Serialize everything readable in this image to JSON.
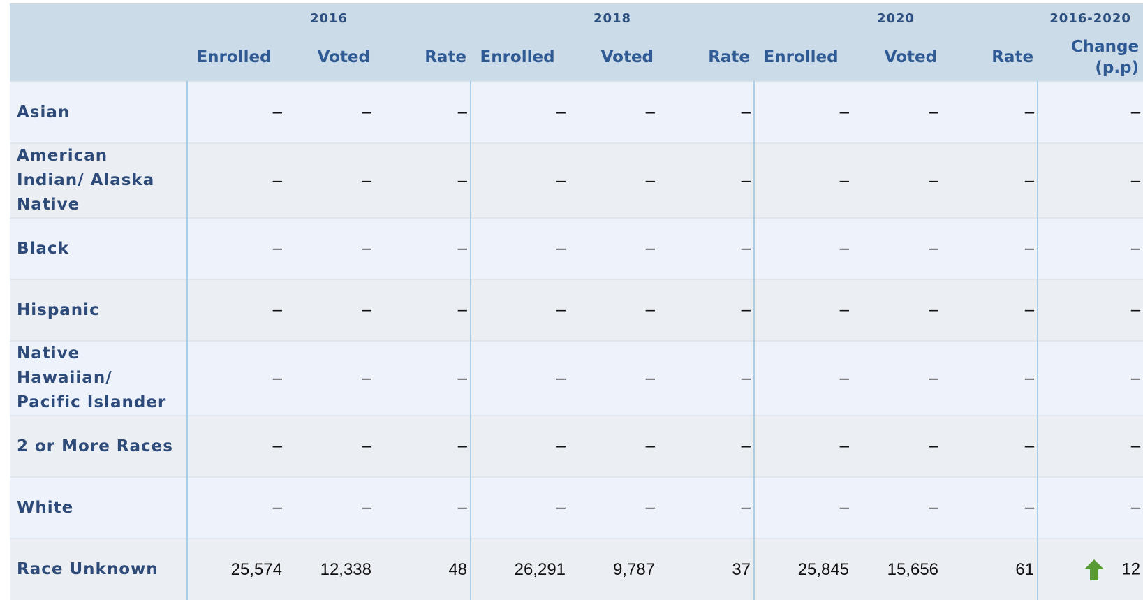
{
  "table": {
    "groups": [
      {
        "title": "2016",
        "columns": [
          "Enrolled",
          "Voted",
          "Rate"
        ]
      },
      {
        "title": "2018",
        "columns": [
          "Enrolled",
          "Voted",
          "Rate"
        ]
      },
      {
        "title": "2020",
        "columns": [
          "Enrolled",
          "Voted",
          "Rate"
        ]
      },
      {
        "title": "2016-2020",
        "columns": [
          "Change (p.p)"
        ]
      }
    ],
    "rows": [
      {
        "label": "Asian",
        "cells": [
          "–",
          "–",
          "–",
          "–",
          "–",
          "–",
          "–",
          "–",
          "–",
          "–"
        ]
      },
      {
        "label": "American Indian/ Alaska Native",
        "cells": [
          "–",
          "–",
          "–",
          "–",
          "–",
          "–",
          "–",
          "–",
          "–",
          "–"
        ]
      },
      {
        "label": "Black",
        "cells": [
          "–",
          "–",
          "–",
          "–",
          "–",
          "–",
          "–",
          "–",
          "–",
          "–"
        ]
      },
      {
        "label": "Hispanic",
        "cells": [
          "–",
          "–",
          "–",
          "–",
          "–",
          "–",
          "–",
          "–",
          "–",
          "–"
        ]
      },
      {
        "label": "Native Hawaiian/ Pacific Islander",
        "cells": [
          "–",
          "–",
          "–",
          "–",
          "–",
          "–",
          "–",
          "–",
          "–",
          "–"
        ]
      },
      {
        "label": "2 or More Races",
        "cells": [
          "–",
          "–",
          "–",
          "–",
          "–",
          "–",
          "–",
          "–",
          "–",
          "–"
        ]
      },
      {
        "label": "White",
        "cells": [
          "–",
          "–",
          "–",
          "–",
          "–",
          "–",
          "–",
          "–",
          "–",
          "–"
        ]
      },
      {
        "label": "Race Unknown",
        "cells": [
          "25,574",
          "12,338",
          "48",
          "26,291",
          "9,787",
          "37",
          "25,845",
          "15,656",
          "61",
          "12"
        ]
      }
    ]
  }
}
